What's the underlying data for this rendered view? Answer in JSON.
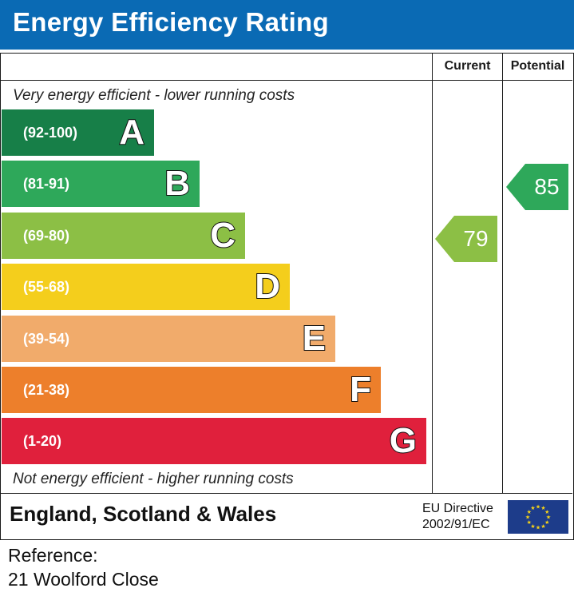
{
  "title": "Energy Efficiency Rating",
  "columns": {
    "current": "Current",
    "potential": "Potential"
  },
  "top_caption": "Very energy efficient - lower running costs",
  "bottom_caption": "Not energy efficient - higher running costs",
  "chart_data": {
    "type": "bar",
    "title": "Energy Efficiency Rating",
    "bands": [
      {
        "range": "(92-100)",
        "letter": "A",
        "color": "#177f48"
      },
      {
        "range": "(81-91)",
        "letter": "B",
        "color": "#2ea85a"
      },
      {
        "range": "(69-80)",
        "letter": "C",
        "color": "#8cbf45"
      },
      {
        "range": "(55-68)",
        "letter": "D",
        "color": "#f4ce1c"
      },
      {
        "range": "(39-54)",
        "letter": "E",
        "color": "#f1ab6b"
      },
      {
        "range": "(21-38)",
        "letter": "F",
        "color": "#ed7f2b"
      },
      {
        "range": "(1-20)",
        "letter": "G",
        "color": "#e0203c"
      }
    ],
    "current": {
      "label": "Current",
      "value": "79",
      "band": "C",
      "color": "#8cbf45"
    },
    "potential": {
      "label": "Potential",
      "value": "85",
      "band": "B",
      "color": "#2ea85a"
    }
  },
  "footer": {
    "region": "England, Scotland & Wales",
    "directive_line1": "EU Directive",
    "directive_line2": "2002/91/EC"
  },
  "reference": {
    "label": "Reference:",
    "address": "21 Woolford Close"
  },
  "colors": {
    "header_bg": "#0a6ab4",
    "flag_bg": "#1d3c8a",
    "flag_stars": "#f7d417"
  }
}
